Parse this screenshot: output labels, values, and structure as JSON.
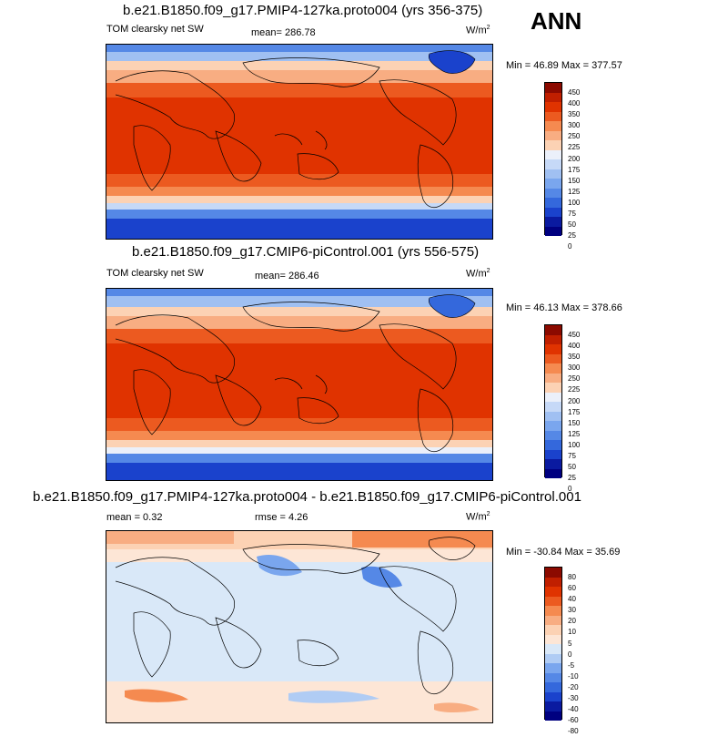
{
  "season": "ANN",
  "panels": [
    {
      "title": "b.e21.B1850.f09_g17.PMIP4-127ka.proto004 (yrs 356-375)",
      "left_label": "TOM clearsky net SW",
      "center_label": "mean= 286.78",
      "units": "W/m",
      "units_sup": "2",
      "minmax": "Min =  46.89 Max = 377.57",
      "levels": [
        "450",
        "400",
        "350",
        "300",
        "250",
        "225",
        "200",
        "175",
        "150",
        "125",
        "100",
        "75",
        "50",
        "25",
        "0"
      ],
      "colors": [
        "#8c0a00",
        "#c01f00",
        "#e03300",
        "#ec5a20",
        "#f58a50",
        "#f8ad82",
        "#fcd2b4",
        "#ebf0fa",
        "#c6d9f7",
        "#a0c0f2",
        "#7aa6ee",
        "#5588e6",
        "#3468dc",
        "#1a42cc",
        "#0a1aa0",
        "#000080"
      ]
    },
    {
      "title": "b.e21.B1850.f09_g17.CMIP6-piControl.001 (yrs 556-575)",
      "left_label": "TOM clearsky net SW",
      "center_label": "mean= 286.46",
      "units": "W/m",
      "units_sup": "2",
      "minmax": "Min =  46.13 Max = 378.66",
      "levels": [
        "450",
        "400",
        "350",
        "300",
        "250",
        "225",
        "200",
        "175",
        "150",
        "125",
        "100",
        "75",
        "50",
        "25",
        "0"
      ],
      "colors": [
        "#8c0a00",
        "#c01f00",
        "#e03300",
        "#ec5a20",
        "#f58a50",
        "#f8ad82",
        "#fcd2b4",
        "#ebf0fa",
        "#c6d9f7",
        "#a0c0f2",
        "#7aa6ee",
        "#5588e6",
        "#3468dc",
        "#1a42cc",
        "#0a1aa0",
        "#000080"
      ]
    },
    {
      "title": "b.e21.B1850.f09_g17.PMIP4-127ka.proto004 - b.e21.B1850.f09_g17.CMIP6-piControl.001",
      "left_label": "mean =   0.32",
      "center_label": "rmse =   4.26",
      "units": "W/m",
      "units_sup": "2",
      "minmax": "Min = -30.84 Max =  35.69",
      "levels": [
        "80",
        "60",
        "40",
        "30",
        "20",
        "10",
        "5",
        "0",
        "-5",
        "-10",
        "-20",
        "-30",
        "-40",
        "-60",
        "-80"
      ],
      "colors": [
        "#8c0a00",
        "#c01f00",
        "#e03300",
        "#ec5a20",
        "#f58a50",
        "#f8ad82",
        "#fcd2b4",
        "#fde6d6",
        "#d9e8f8",
        "#b0ccf4",
        "#7aa6ee",
        "#5588e6",
        "#3468dc",
        "#1a42cc",
        "#0a1aa0",
        "#000080"
      ]
    }
  ]
}
